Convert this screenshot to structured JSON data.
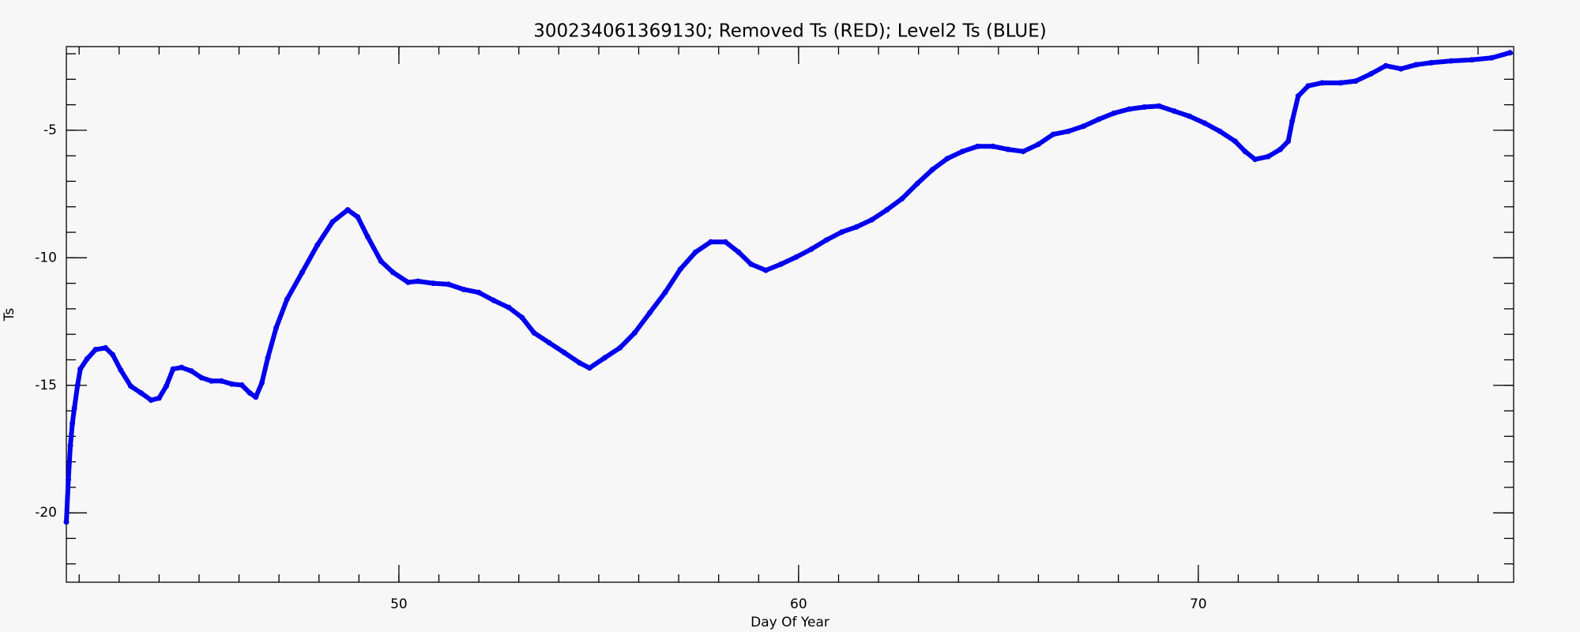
{
  "chart_data": {
    "type": "scatter",
    "title": "300234061369130; Removed Ts (RED); Level2 Ts (BLUE)",
    "x_label": "Day Of Year",
    "y_label": "Ts",
    "xlim": [
      41.68,
      77.89
    ],
    "xticks": [
      50,
      60,
      70
    ],
    "ylim": [
      -22.72,
      -1.72
    ],
    "yticks": [
      -5,
      -10,
      -15,
      -20
    ],
    "series": [
      {
        "name": "Level2 Ts",
        "color": "#0000ee",
        "x": [
          41.68,
          41.73,
          41.78,
          41.83,
          41.88,
          41.96,
          42.03,
          42.2,
          42.41,
          42.66,
          42.84,
          43.04,
          43.29,
          43.55,
          43.8,
          44.0,
          44.18,
          44.35,
          44.56,
          44.81,
          45.06,
          45.31,
          45.56,
          45.82,
          46.07,
          46.27,
          46.42,
          46.57,
          46.72,
          46.93,
          47.2,
          47.58,
          47.96,
          48.34,
          48.72,
          48.97,
          49.22,
          49.55,
          49.85,
          50.23,
          50.48,
          50.86,
          51.24,
          51.62,
          52.0,
          52.37,
          52.75,
          53.08,
          53.38,
          53.76,
          54.14,
          54.52,
          54.77,
          55.15,
          55.53,
          55.9,
          56.28,
          56.66,
          57.04,
          57.42,
          57.8,
          58.17,
          58.5,
          58.81,
          59.18,
          59.56,
          59.94,
          60.32,
          60.7,
          61.08,
          61.45,
          61.83,
          62.21,
          62.59,
          62.97,
          63.35,
          63.72,
          64.1,
          64.48,
          64.86,
          65.24,
          65.62,
          66.0,
          66.37,
          66.75,
          67.13,
          67.51,
          67.89,
          68.27,
          68.65,
          69.02,
          69.4,
          69.78,
          70.16,
          70.54,
          70.92,
          71.17,
          71.42,
          71.75,
          72.05,
          72.25,
          72.35,
          72.5,
          72.75,
          73.1,
          73.56,
          73.94,
          74.32,
          74.69,
          75.07,
          75.45,
          75.83,
          76.33,
          76.84,
          77.34,
          77.8
        ],
        "values": [
          -20.36,
          -18.7,
          -17.36,
          -16.5,
          -15.9,
          -15.0,
          -14.36,
          -13.96,
          -13.6,
          -13.53,
          -13.8,
          -14.4,
          -15.03,
          -15.3,
          -15.58,
          -15.5,
          -15.03,
          -14.36,
          -14.3,
          -14.44,
          -14.7,
          -14.83,
          -14.83,
          -14.95,
          -14.99,
          -15.3,
          -15.46,
          -14.91,
          -13.92,
          -12.74,
          -11.63,
          -10.57,
          -9.5,
          -8.59,
          -8.12,
          -8.4,
          -9.18,
          -10.13,
          -10.57,
          -10.96,
          -10.92,
          -11.0,
          -11.04,
          -11.24,
          -11.36,
          -11.67,
          -11.95,
          -12.34,
          -12.94,
          -13.33,
          -13.72,
          -14.12,
          -14.32,
          -13.92,
          -13.53,
          -12.94,
          -12.15,
          -11.36,
          -10.45,
          -9.78,
          -9.38,
          -9.38,
          -9.78,
          -10.25,
          -10.49,
          -10.25,
          -9.97,
          -9.66,
          -9.3,
          -8.99,
          -8.79,
          -8.51,
          -8.12,
          -7.68,
          -7.09,
          -6.54,
          -6.11,
          -5.83,
          -5.63,
          -5.63,
          -5.75,
          -5.83,
          -5.55,
          -5.16,
          -5.04,
          -4.84,
          -4.57,
          -4.33,
          -4.17,
          -4.09,
          -4.05,
          -4.25,
          -4.45,
          -4.72,
          -5.04,
          -5.43,
          -5.83,
          -6.14,
          -6.03,
          -5.75,
          -5.43,
          -4.64,
          -3.66,
          -3.26,
          -3.14,
          -3.14,
          -3.07,
          -2.79,
          -2.47,
          -2.59,
          -2.43,
          -2.35,
          -2.28,
          -2.24,
          -2.16,
          -1.96
        ]
      }
    ]
  }
}
